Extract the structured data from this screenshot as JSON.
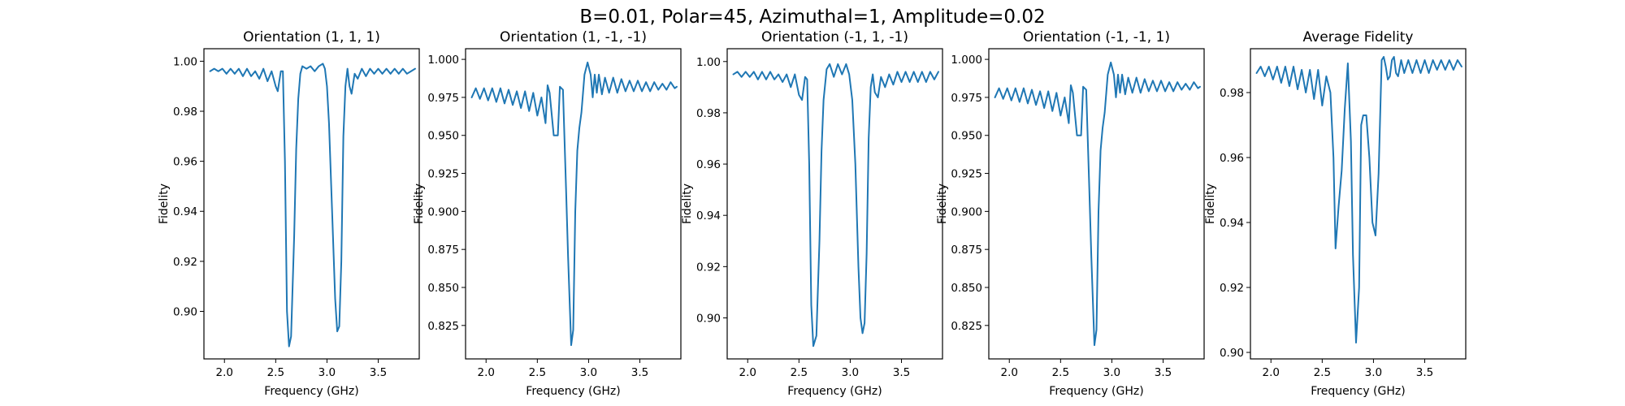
{
  "figure": {
    "suptitle": "B=0.01, Polar=45, Azimuthal=1, Amplitude=0.02",
    "line_color": "#1f77b4"
  },
  "chart_data": [
    {
      "type": "line",
      "title": "Orientation (1, 1, 1)",
      "xlabel": "Frequency (GHz)",
      "ylabel": "Fidelity",
      "xlim": [
        1.8,
        3.9
      ],
      "ylim": [
        0.881,
        1.005
      ],
      "xticks": [
        2.0,
        2.5,
        3.0,
        3.5
      ],
      "xtick_labels": [
        "2.0",
        "2.5",
        "3.0",
        "3.5"
      ],
      "yticks": [
        0.9,
        0.92,
        0.94,
        0.96,
        0.98,
        1.0
      ],
      "ytick_labels": [
        "0.90",
        "0.92",
        "0.94",
        "0.96",
        "0.98",
        "1.00"
      ],
      "grid": false,
      "series": [
        {
          "name": "Fidelity",
          "x": [
            1.86,
            1.9,
            1.94,
            1.98,
            2.02,
            2.06,
            2.1,
            2.14,
            2.18,
            2.22,
            2.26,
            2.3,
            2.34,
            2.38,
            2.42,
            2.46,
            2.5,
            2.52,
            2.55,
            2.57,
            2.59,
            2.61,
            2.63,
            2.65,
            2.68,
            2.7,
            2.72,
            2.74,
            2.76,
            2.8,
            2.84,
            2.88,
            2.92,
            2.96,
            2.98,
            3.0,
            3.02,
            3.05,
            3.08,
            3.1,
            3.12,
            3.14,
            3.16,
            3.18,
            3.2,
            3.22,
            3.24,
            3.27,
            3.3,
            3.34,
            3.38,
            3.42,
            3.46,
            3.5,
            3.54,
            3.58,
            3.62,
            3.66,
            3.7,
            3.74,
            3.78,
            3.82,
            3.86
          ],
          "y": [
            0.996,
            0.997,
            0.996,
            0.997,
            0.995,
            0.997,
            0.995,
            0.997,
            0.994,
            0.997,
            0.994,
            0.996,
            0.993,
            0.997,
            0.992,
            0.996,
            0.99,
            0.988,
            0.996,
            0.996,
            0.96,
            0.9,
            0.886,
            0.89,
            0.93,
            0.965,
            0.985,
            0.995,
            0.998,
            0.997,
            0.998,
            0.996,
            0.998,
            0.999,
            0.997,
            0.99,
            0.975,
            0.94,
            0.905,
            0.892,
            0.894,
            0.92,
            0.97,
            0.99,
            0.997,
            0.99,
            0.987,
            0.995,
            0.993,
            0.997,
            0.994,
            0.997,
            0.995,
            0.997,
            0.995,
            0.997,
            0.995,
            0.997,
            0.995,
            0.997,
            0.995,
            0.996,
            0.997
          ]
        }
      ]
    },
    {
      "type": "line",
      "title": "Orientation (1, -1, -1)",
      "xlabel": "Frequency (GHz)",
      "ylabel": "Fidelity",
      "xlim": [
        1.8,
        3.9
      ],
      "ylim": [
        0.803,
        1.007
      ],
      "xticks": [
        2.0,
        2.5,
        3.0,
        3.5
      ],
      "xtick_labels": [
        "2.0",
        "2.5",
        "3.0",
        "3.5"
      ],
      "yticks": [
        0.825,
        0.85,
        0.875,
        0.9,
        0.925,
        0.95,
        0.975,
        1.0
      ],
      "ytick_labels": [
        "0.825",
        "0.850",
        "0.875",
        "0.900",
        "0.925",
        "0.950",
        "0.975",
        "1.000"
      ],
      "grid": false,
      "series": [
        {
          "name": "Fidelity",
          "x": [
            1.86,
            1.9,
            1.94,
            1.98,
            2.02,
            2.06,
            2.1,
            2.14,
            2.18,
            2.22,
            2.26,
            2.3,
            2.34,
            2.38,
            2.42,
            2.46,
            2.5,
            2.54,
            2.58,
            2.6,
            2.62,
            2.66,
            2.7,
            2.72,
            2.75,
            2.78,
            2.8,
            2.83,
            2.85,
            2.87,
            2.89,
            2.91,
            2.93,
            2.96,
            2.99,
            3.02,
            3.04,
            3.06,
            3.08,
            3.1,
            3.13,
            3.16,
            3.2,
            3.24,
            3.28,
            3.32,
            3.36,
            3.4,
            3.44,
            3.48,
            3.52,
            3.56,
            3.6,
            3.64,
            3.68,
            3.72,
            3.76,
            3.8,
            3.84,
            3.86
          ],
          "y": [
            0.975,
            0.981,
            0.974,
            0.981,
            0.973,
            0.981,
            0.972,
            0.981,
            0.971,
            0.98,
            0.97,
            0.979,
            0.968,
            0.979,
            0.966,
            0.978,
            0.963,
            0.975,
            0.958,
            0.983,
            0.978,
            0.95,
            0.95,
            0.982,
            0.98,
            0.915,
            0.87,
            0.812,
            0.822,
            0.9,
            0.94,
            0.955,
            0.965,
            0.99,
            0.998,
            0.99,
            0.975,
            0.99,
            0.978,
            0.99,
            0.977,
            0.988,
            0.978,
            0.988,
            0.978,
            0.987,
            0.979,
            0.986,
            0.979,
            0.986,
            0.979,
            0.985,
            0.979,
            0.985,
            0.98,
            0.984,
            0.98,
            0.985,
            0.981,
            0.982
          ]
        }
      ]
    },
    {
      "type": "line",
      "title": "Orientation (-1, 1, -1)",
      "xlabel": "Frequency (GHz)",
      "ylabel": "Fidelity",
      "xlim": [
        1.8,
        3.9
      ],
      "ylim": [
        0.884,
        1.005
      ],
      "xticks": [
        2.0,
        2.5,
        3.0,
        3.5
      ],
      "xtick_labels": [
        "2.0",
        "2.5",
        "3.0",
        "3.5"
      ],
      "yticks": [
        0.9,
        0.92,
        0.94,
        0.96,
        0.98,
        1.0
      ],
      "ytick_labels": [
        "0.90",
        "0.92",
        "0.94",
        "0.96",
        "0.98",
        "1.00"
      ],
      "grid": false,
      "series": [
        {
          "name": "Fidelity",
          "x": [
            1.86,
            1.9,
            1.94,
            1.98,
            2.02,
            2.06,
            2.1,
            2.14,
            2.18,
            2.22,
            2.26,
            2.3,
            2.34,
            2.38,
            2.42,
            2.46,
            2.5,
            2.53,
            2.56,
            2.58,
            2.6,
            2.62,
            2.64,
            2.67,
            2.7,
            2.72,
            2.74,
            2.77,
            2.8,
            2.84,
            2.88,
            2.92,
            2.96,
            2.99,
            3.02,
            3.05,
            3.08,
            3.1,
            3.12,
            3.14,
            3.16,
            3.18,
            3.2,
            3.22,
            3.24,
            3.27,
            3.3,
            3.34,
            3.38,
            3.42,
            3.46,
            3.5,
            3.54,
            3.58,
            3.62,
            3.66,
            3.7,
            3.74,
            3.78,
            3.82,
            3.86
          ],
          "y": [
            0.995,
            0.996,
            0.994,
            0.996,
            0.994,
            0.996,
            0.993,
            0.996,
            0.993,
            0.996,
            0.993,
            0.995,
            0.992,
            0.995,
            0.99,
            0.995,
            0.987,
            0.985,
            0.994,
            0.993,
            0.96,
            0.905,
            0.889,
            0.893,
            0.93,
            0.965,
            0.985,
            0.997,
            0.999,
            0.994,
            0.999,
            0.995,
            0.999,
            0.995,
            0.985,
            0.96,
            0.92,
            0.9,
            0.894,
            0.898,
            0.925,
            0.97,
            0.99,
            0.995,
            0.988,
            0.986,
            0.994,
            0.99,
            0.995,
            0.991,
            0.996,
            0.992,
            0.996,
            0.992,
            0.996,
            0.992,
            0.996,
            0.992,
            0.996,
            0.993,
            0.996
          ]
        }
      ]
    },
    {
      "type": "line",
      "title": "Orientation (-1, -1, 1)",
      "xlabel": "Frequency (GHz)",
      "ylabel": "Fidelity",
      "xlim": [
        1.8,
        3.9
      ],
      "ylim": [
        0.803,
        1.007
      ],
      "xticks": [
        2.0,
        2.5,
        3.0,
        3.5
      ],
      "xtick_labels": [
        "2.0",
        "2.5",
        "3.0",
        "3.5"
      ],
      "yticks": [
        0.825,
        0.85,
        0.875,
        0.9,
        0.925,
        0.95,
        0.975,
        1.0
      ],
      "ytick_labels": [
        "0.825",
        "0.850",
        "0.875",
        "0.900",
        "0.925",
        "0.950",
        "0.975",
        "1.000"
      ],
      "grid": false,
      "series": [
        {
          "name": "Fidelity",
          "x": [
            1.86,
            1.9,
            1.94,
            1.98,
            2.02,
            2.06,
            2.1,
            2.14,
            2.18,
            2.22,
            2.26,
            2.3,
            2.34,
            2.38,
            2.42,
            2.46,
            2.5,
            2.54,
            2.58,
            2.6,
            2.62,
            2.66,
            2.7,
            2.72,
            2.75,
            2.78,
            2.8,
            2.83,
            2.85,
            2.87,
            2.89,
            2.91,
            2.93,
            2.96,
            2.99,
            3.02,
            3.04,
            3.06,
            3.08,
            3.1,
            3.13,
            3.16,
            3.2,
            3.24,
            3.28,
            3.32,
            3.36,
            3.4,
            3.44,
            3.48,
            3.52,
            3.56,
            3.6,
            3.64,
            3.68,
            3.72,
            3.76,
            3.8,
            3.84,
            3.86
          ],
          "y": [
            0.975,
            0.981,
            0.974,
            0.981,
            0.973,
            0.981,
            0.972,
            0.981,
            0.971,
            0.98,
            0.97,
            0.979,
            0.968,
            0.979,
            0.966,
            0.978,
            0.963,
            0.975,
            0.958,
            0.983,
            0.978,
            0.95,
            0.95,
            0.982,
            0.98,
            0.915,
            0.87,
            0.812,
            0.822,
            0.9,
            0.94,
            0.955,
            0.965,
            0.99,
            0.998,
            0.99,
            0.975,
            0.99,
            0.978,
            0.99,
            0.977,
            0.988,
            0.978,
            0.988,
            0.978,
            0.987,
            0.979,
            0.986,
            0.979,
            0.986,
            0.979,
            0.985,
            0.979,
            0.985,
            0.98,
            0.984,
            0.98,
            0.985,
            0.981,
            0.982
          ]
        }
      ]
    },
    {
      "type": "line",
      "title": "Average Fidelity",
      "xlabel": "Frequency (GHz)",
      "ylabel": "Fidelity",
      "xlim": [
        1.8,
        3.9
      ],
      "ylim": [
        0.898,
        0.9935
      ],
      "xticks": [
        2.0,
        2.5,
        3.0,
        3.5
      ],
      "xtick_labels": [
        "2.0",
        "2.5",
        "3.0",
        "3.5"
      ],
      "yticks": [
        0.9,
        0.92,
        0.94,
        0.96,
        0.98
      ],
      "ytick_labels": [
        "0.90",
        "0.92",
        "0.94",
        "0.96",
        "0.98"
      ],
      "grid": false,
      "series": [
        {
          "name": "Fidelity",
          "x": [
            1.86,
            1.9,
            1.94,
            1.98,
            2.02,
            2.06,
            2.1,
            2.14,
            2.18,
            2.22,
            2.26,
            2.3,
            2.34,
            2.38,
            2.42,
            2.46,
            2.5,
            2.54,
            2.58,
            2.61,
            2.63,
            2.66,
            2.69,
            2.72,
            2.75,
            2.78,
            2.8,
            2.83,
            2.86,
            2.88,
            2.9,
            2.93,
            2.96,
            2.99,
            3.02,
            3.05,
            3.08,
            3.1,
            3.12,
            3.14,
            3.16,
            3.18,
            3.2,
            3.22,
            3.24,
            3.27,
            3.3,
            3.34,
            3.38,
            3.42,
            3.46,
            3.5,
            3.54,
            3.58,
            3.62,
            3.66,
            3.7,
            3.74,
            3.78,
            3.82,
            3.86
          ],
          "y": [
            0.986,
            0.988,
            0.985,
            0.988,
            0.984,
            0.988,
            0.983,
            0.988,
            0.982,
            0.988,
            0.981,
            0.987,
            0.98,
            0.987,
            0.978,
            0.987,
            0.976,
            0.985,
            0.98,
            0.96,
            0.932,
            0.945,
            0.956,
            0.975,
            0.989,
            0.965,
            0.93,
            0.903,
            0.92,
            0.97,
            0.973,
            0.973,
            0.96,
            0.94,
            0.936,
            0.955,
            0.99,
            0.991,
            0.988,
            0.984,
            0.985,
            0.99,
            0.991,
            0.986,
            0.985,
            0.99,
            0.986,
            0.99,
            0.986,
            0.99,
            0.986,
            0.99,
            0.986,
            0.99,
            0.987,
            0.99,
            0.987,
            0.99,
            0.987,
            0.99,
            0.988
          ]
        }
      ]
    }
  ]
}
